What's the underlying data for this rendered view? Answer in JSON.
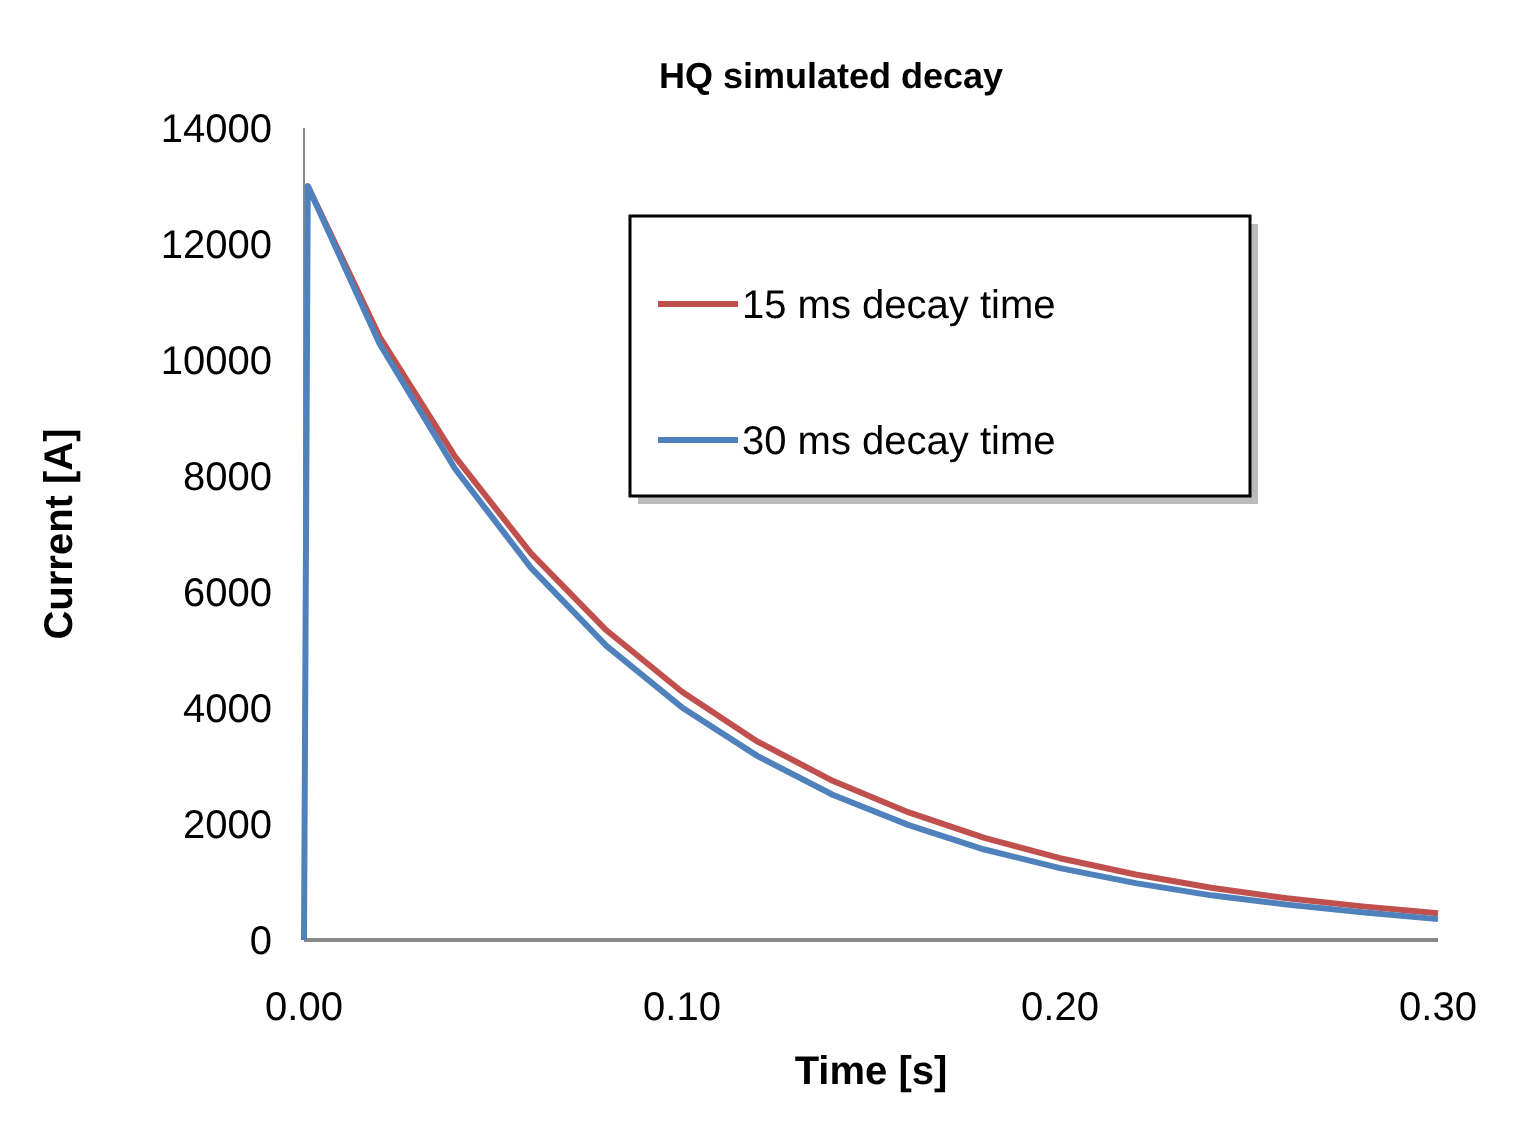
{
  "chart_data": {
    "type": "line",
    "title": "HQ simulated decay",
    "xlabel": "Time [s]",
    "ylabel": "Current [A]",
    "xlim": [
      0,
      0.3
    ],
    "xticks": [
      {
        "value": 0,
        "label": "0.00"
      },
      {
        "value": 0.1,
        "label": "0.10"
      },
      {
        "value": 0.2,
        "label": "0.20"
      },
      {
        "value": 0.3,
        "label": "0.30"
      }
    ],
    "ylim": [
      0,
      14000
    ],
    "yticks": [
      0,
      2000,
      4000,
      6000,
      8000,
      10000,
      12000,
      14000
    ],
    "legend": "top right",
    "grid": false,
    "series": [
      {
        "name": "15 ms decay time",
        "color": "#c0504d",
        "x": [
          0.001,
          0.02,
          0.04,
          0.06,
          0.08,
          0.1,
          0.12,
          0.14,
          0.16,
          0.18,
          0.2,
          0.22,
          0.24,
          0.26,
          0.28,
          0.3
        ],
        "values": [
          13000,
          10400,
          8330,
          6670,
          5340,
          4280,
          3420,
          2740,
          2200,
          1760,
          1410,
          1130,
          900,
          720,
          580,
          460
        ]
      },
      {
        "name": "30 ms decay time",
        "color": "#4f81bd",
        "x": [
          0,
          0.001,
          0.02,
          0.04,
          0.06,
          0.08,
          0.1,
          0.12,
          0.14,
          0.16,
          0.18,
          0.2,
          0.22,
          0.24,
          0.26,
          0.28,
          0.3
        ],
        "values": [
          0,
          13000,
          10280,
          8120,
          6420,
          5070,
          4010,
          3170,
          2500,
          1980,
          1560,
          1240,
          980,
          770,
          610,
          480,
          360
        ]
      }
    ]
  }
}
